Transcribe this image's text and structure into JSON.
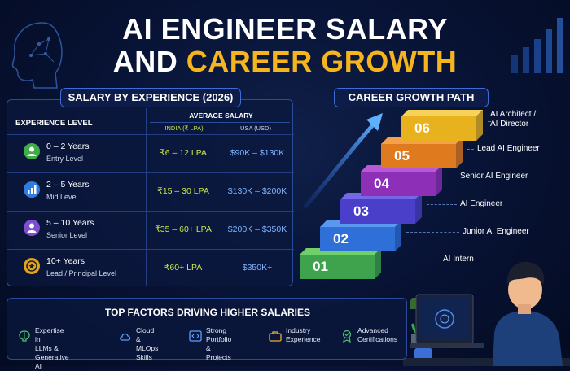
{
  "title": {
    "line1": "AI ENGINEER SALARY",
    "line2_prefix": "AND ",
    "line2_accent": "CAREER GROWTH"
  },
  "salary": {
    "heading": "SALARY BY EXPERIENCE (2026)",
    "col_experience": "EXPERIENCE LEVEL",
    "col_average": "AVERAGE SALARY",
    "col_india": "INDIA (₹ LPA)",
    "col_usa": "USA (USD)",
    "rows": [
      {
        "years": "0 – 2 Years",
        "level": "Entry Level",
        "india": "₹6 – 12 LPA",
        "usa": "$90K – $130K",
        "icon": "person-icon",
        "color": "#3fae49"
      },
      {
        "years": "2 – 5 Years",
        "level": "Mid Level",
        "india": "₹15 – 30 LPA",
        "usa": "$130K – $200K",
        "icon": "bar-chart-icon",
        "color": "#2f7de1"
      },
      {
        "years": "5 – 10 Years",
        "level": "Senior Level",
        "india": "₹35 – 60+ LPA",
        "usa": "$200K – $350K",
        "icon": "person-icon",
        "color": "#7b4fd0"
      },
      {
        "years": "10+ Years",
        "level": "Lead / Principal Level",
        "india": "₹60+ LPA",
        "usa": "$350K+",
        "icon": "star-badge-icon",
        "color": "#e0a31b"
      }
    ]
  },
  "career": {
    "heading": "CAREER GROWTH PATH",
    "steps": [
      {
        "num": "01",
        "role": "AI Intern",
        "color": "#3fa34d",
        "top": "#6fcf6a"
      },
      {
        "num": "02",
        "role": "Junior AI Engineer",
        "color": "#2e6fd8",
        "top": "#5a98f0"
      },
      {
        "num": "03",
        "role": "AI Engineer",
        "color": "#4a3fc8",
        "top": "#7468e8"
      },
      {
        "num": "04",
        "role": "Senior AI Engineer",
        "color": "#8e2fb8",
        "top": "#b85ad8"
      },
      {
        "num": "05",
        "role": "Lead AI Engineer",
        "color": "#e07a1f",
        "top": "#f5a04a"
      },
      {
        "num": "06",
        "role": "AI Architect /\nAI Director",
        "color": "#e8b21e",
        "top": "#f7d25a"
      }
    ]
  },
  "factors": {
    "heading": "TOP FACTORS DRIVING HIGHER SALARIES",
    "items": [
      {
        "label": "Expertise in\nLLMs & Generative AI",
        "icon": "brain-icon"
      },
      {
        "label": "Cloud &\nMLOps Skills",
        "icon": "cloud-icon"
      },
      {
        "label": "Strong Portfolio\n& Projects",
        "icon": "code-icon"
      },
      {
        "label": "Industry\nExperience",
        "icon": "briefcase-icon"
      },
      {
        "label": "Advanced\nCertifications",
        "icon": "certificate-icon"
      }
    ]
  }
}
